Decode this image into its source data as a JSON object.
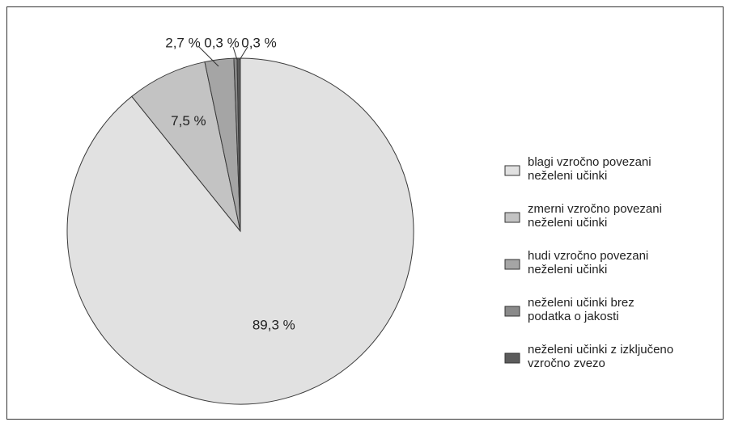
{
  "chart_data": {
    "type": "pie",
    "title": "",
    "legend_position": "right",
    "slices": [
      {
        "label": "blagi vzročno povezani neželeni učinki",
        "value": 89.3,
        "display": "89,3 %",
        "color": "#e1e1e1"
      },
      {
        "label": "zmerni vzročno povezani neželeni učinki",
        "value": 7.5,
        "display": "7,5 %",
        "color": "#c3c3c3"
      },
      {
        "label": "hudi vzročno povezani neželeni učinki",
        "value": 2.7,
        "display": "2,7 %",
        "color": "#a5a5a5"
      },
      {
        "label": "neželeni učinki brez podatka o jakosti",
        "value": 0.3,
        "display": "0,3 %",
        "color": "#8a8a8a"
      },
      {
        "label": "neželeni učinki z izključeno vzročno zvezo",
        "value": 0.3,
        "display": "0,3 %",
        "color": "#5c5c5c"
      }
    ],
    "legend": [
      {
        "lines": [
          "blagi vzročno povezani",
          "neželeni učinki"
        ]
      },
      {
        "lines": [
          "zmerni vzročno povezani",
          "neželeni učinki"
        ]
      },
      {
        "lines": [
          "hudi vzročno povezani",
          "neželeni učinki"
        ]
      },
      {
        "lines": [
          "neželeni učinki brez",
          "podatka o jakosti"
        ]
      },
      {
        "lines": [
          "neželeni učinki z izključeno",
          "vzročno zvezo"
        ]
      }
    ]
  }
}
